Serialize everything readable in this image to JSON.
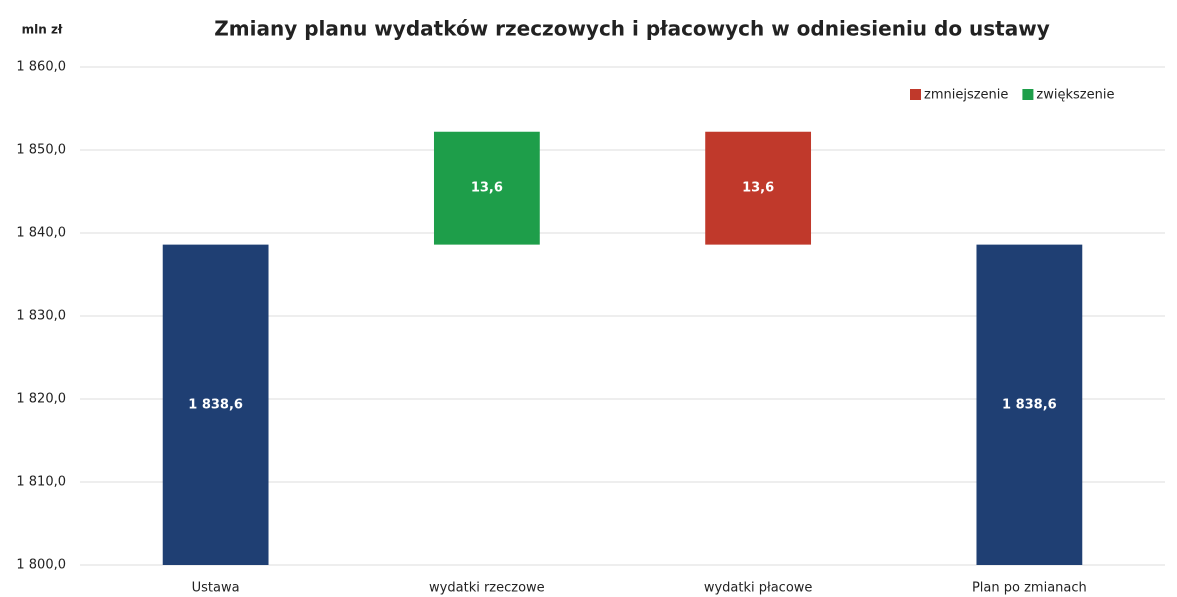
{
  "chart_data": {
    "type": "waterfall",
    "title": "Zmiany planu wydatków rzeczowych i płacowych w odniesieniu do ustawy",
    "y_axis_label": "mln zł",
    "categories": [
      "Ustawa",
      "wydatki rzeczowe",
      "wydatki płacowe",
      "Plan po zmianach"
    ],
    "totals": {
      "color": "#1f3f73",
      "values": [
        1838.6,
        null,
        null,
        1838.6
      ],
      "value_labels": [
        "1 838,6",
        null,
        null,
        "1 838,6"
      ]
    },
    "series": [
      {
        "name": "zmniejszenie",
        "direction": "down",
        "color": "#c0392b",
        "values": [
          null,
          null,
          13.6,
          null
        ],
        "value_labels": [
          null,
          null,
          "13,6",
          null
        ]
      },
      {
        "name": "zwiększenie",
        "direction": "up",
        "color": "#1e9e4a",
        "values": [
          null,
          13.6,
          null,
          null
        ],
        "value_labels": [
          null,
          "13,6",
          null,
          null
        ]
      }
    ],
    "ylim": [
      1800,
      1860
    ],
    "yticks": [
      {
        "value": 1800,
        "label": "1 800,0"
      },
      {
        "value": 1810,
        "label": "1 810,0"
      },
      {
        "value": 1820,
        "label": "1 820,0"
      },
      {
        "value": 1830,
        "label": "1 830,0"
      },
      {
        "value": 1840,
        "label": "1 840,0"
      },
      {
        "value": 1850,
        "label": "1 850,0"
      },
      {
        "value": 1860,
        "label": "1 860,0"
      }
    ],
    "grid": true,
    "legend": "top-right"
  }
}
